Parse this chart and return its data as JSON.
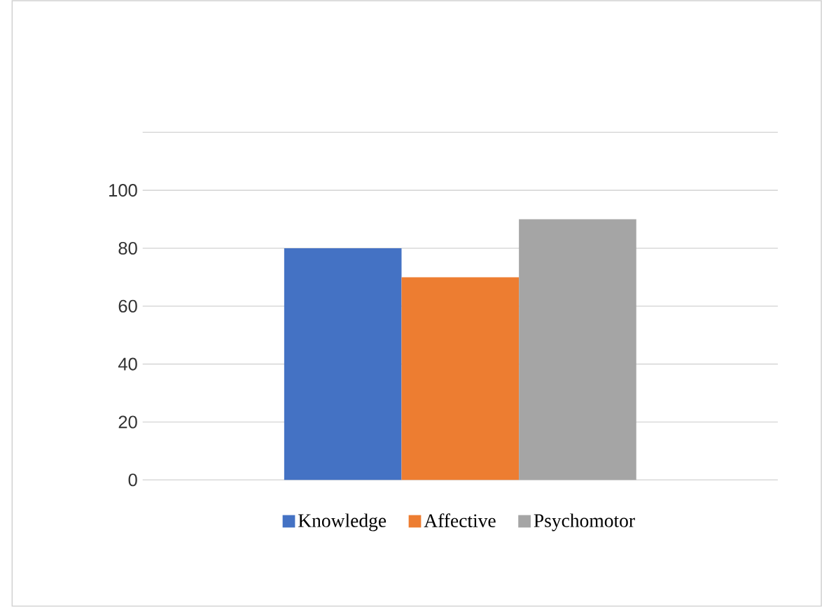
{
  "chart_data": {
    "type": "bar",
    "categories": [
      null
    ],
    "series": [
      {
        "name": "Knowledge",
        "color": "#4472c4",
        "values": [
          80
        ]
      },
      {
        "name": "Affective",
        "color": "#ed7d31",
        "values": [
          70
        ]
      },
      {
        "name": "Psychomotor",
        "color": "#a5a5a5",
        "values": [
          90
        ]
      }
    ],
    "ylim": [
      0,
      120
    ],
    "yticks": [
      0,
      20,
      40,
      60,
      80,
      100,
      {
        "value": 120,
        "label": null
      }
    ],
    "grid": "y",
    "legend": "bottom"
  }
}
